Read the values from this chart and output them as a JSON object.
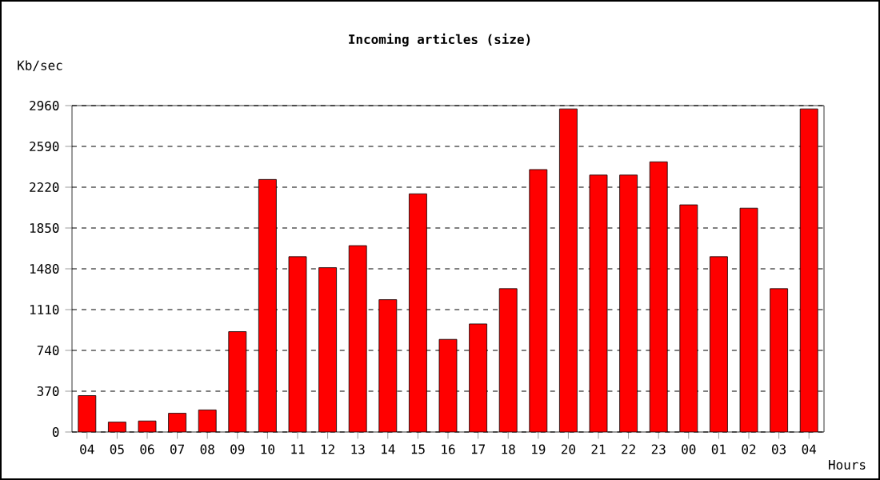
{
  "chart_data": {
    "type": "bar",
    "title": "Incoming articles (size)",
    "xlabel": "Hours",
    "ylabel": "Kb/sec",
    "categories": [
      "04",
      "05",
      "06",
      "07",
      "08",
      "09",
      "10",
      "11",
      "12",
      "13",
      "14",
      "15",
      "16",
      "17",
      "18",
      "19",
      "20",
      "21",
      "22",
      "23",
      "00",
      "01",
      "02",
      "03",
      "04"
    ],
    "values": [
      330,
      90,
      100,
      170,
      200,
      910,
      2290,
      1590,
      1490,
      1690,
      1200,
      2160,
      840,
      980,
      1300,
      2380,
      2930,
      2330,
      2330,
      2450,
      2060,
      1590,
      2030,
      1300,
      2930
    ],
    "color": "#ff0000",
    "ylim": [
      0,
      2960
    ],
    "yticks": [
      0,
      370,
      740,
      1110,
      1480,
      1850,
      2220,
      2590,
      2960
    ],
    "grid": "y"
  }
}
